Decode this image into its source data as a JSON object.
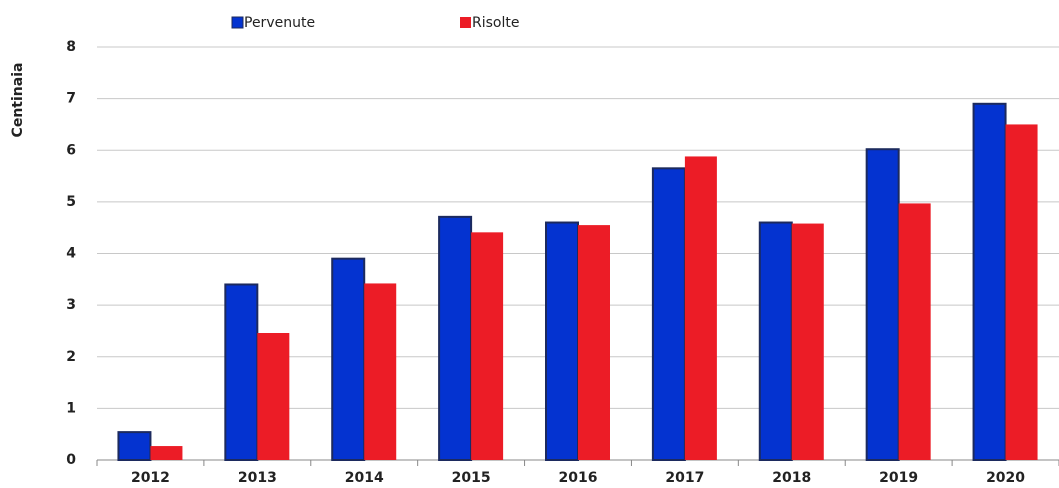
{
  "chart_data": {
    "type": "bar",
    "y_label": "Centinaia",
    "categories": [
      "2012",
      "2013",
      "2014",
      "2015",
      "2016",
      "2017",
      "2018",
      "2019",
      "2020"
    ],
    "series": [
      {
        "name": "Pervenute",
        "color": "#0433d0",
        "values": [
          0.54,
          3.4,
          3.9,
          4.71,
          4.6,
          5.65,
          4.6,
          6.02,
          6.9
        ]
      },
      {
        "name": "Risolte",
        "color": "#ec1c26",
        "values": [
          0.27,
          2.46,
          3.42,
          4.41,
          4.55,
          5.88,
          4.58,
          4.97,
          6.5
        ]
      }
    ],
    "ylim": [
      0,
      8
    ],
    "yticks": [
      0,
      1,
      2,
      3,
      4,
      5,
      6,
      7,
      8
    ],
    "grid": true,
    "legend": "top"
  }
}
